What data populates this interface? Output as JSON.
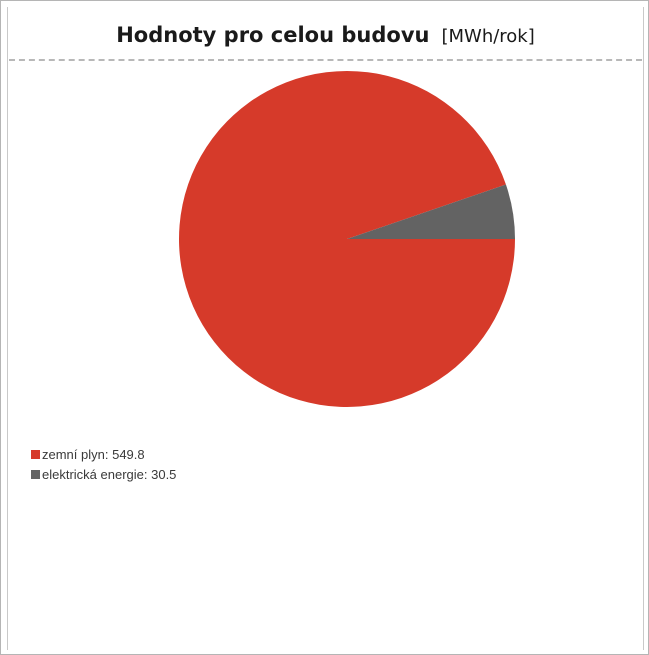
{
  "header": {
    "title": "Hodnoty pro celou budovu",
    "unit": "[MWh/rok]"
  },
  "chart_data": {
    "type": "pie",
    "title": "Hodnoty pro celou budovu",
    "unit": "[MWh/rok]",
    "slices": [
      {
        "label": "zemní plyn",
        "value": 549.8,
        "color": "#d63a2a"
      },
      {
        "label": "elektrická energie",
        "value": 30.5,
        "color": "#636363"
      }
    ],
    "legend": [
      {
        "text": "zemní plyn: 549.8",
        "color": "#d63a2a"
      },
      {
        "text": "elektrická energie: 30.5",
        "color": "#636363"
      }
    ],
    "legend_position": "bottom-left"
  }
}
